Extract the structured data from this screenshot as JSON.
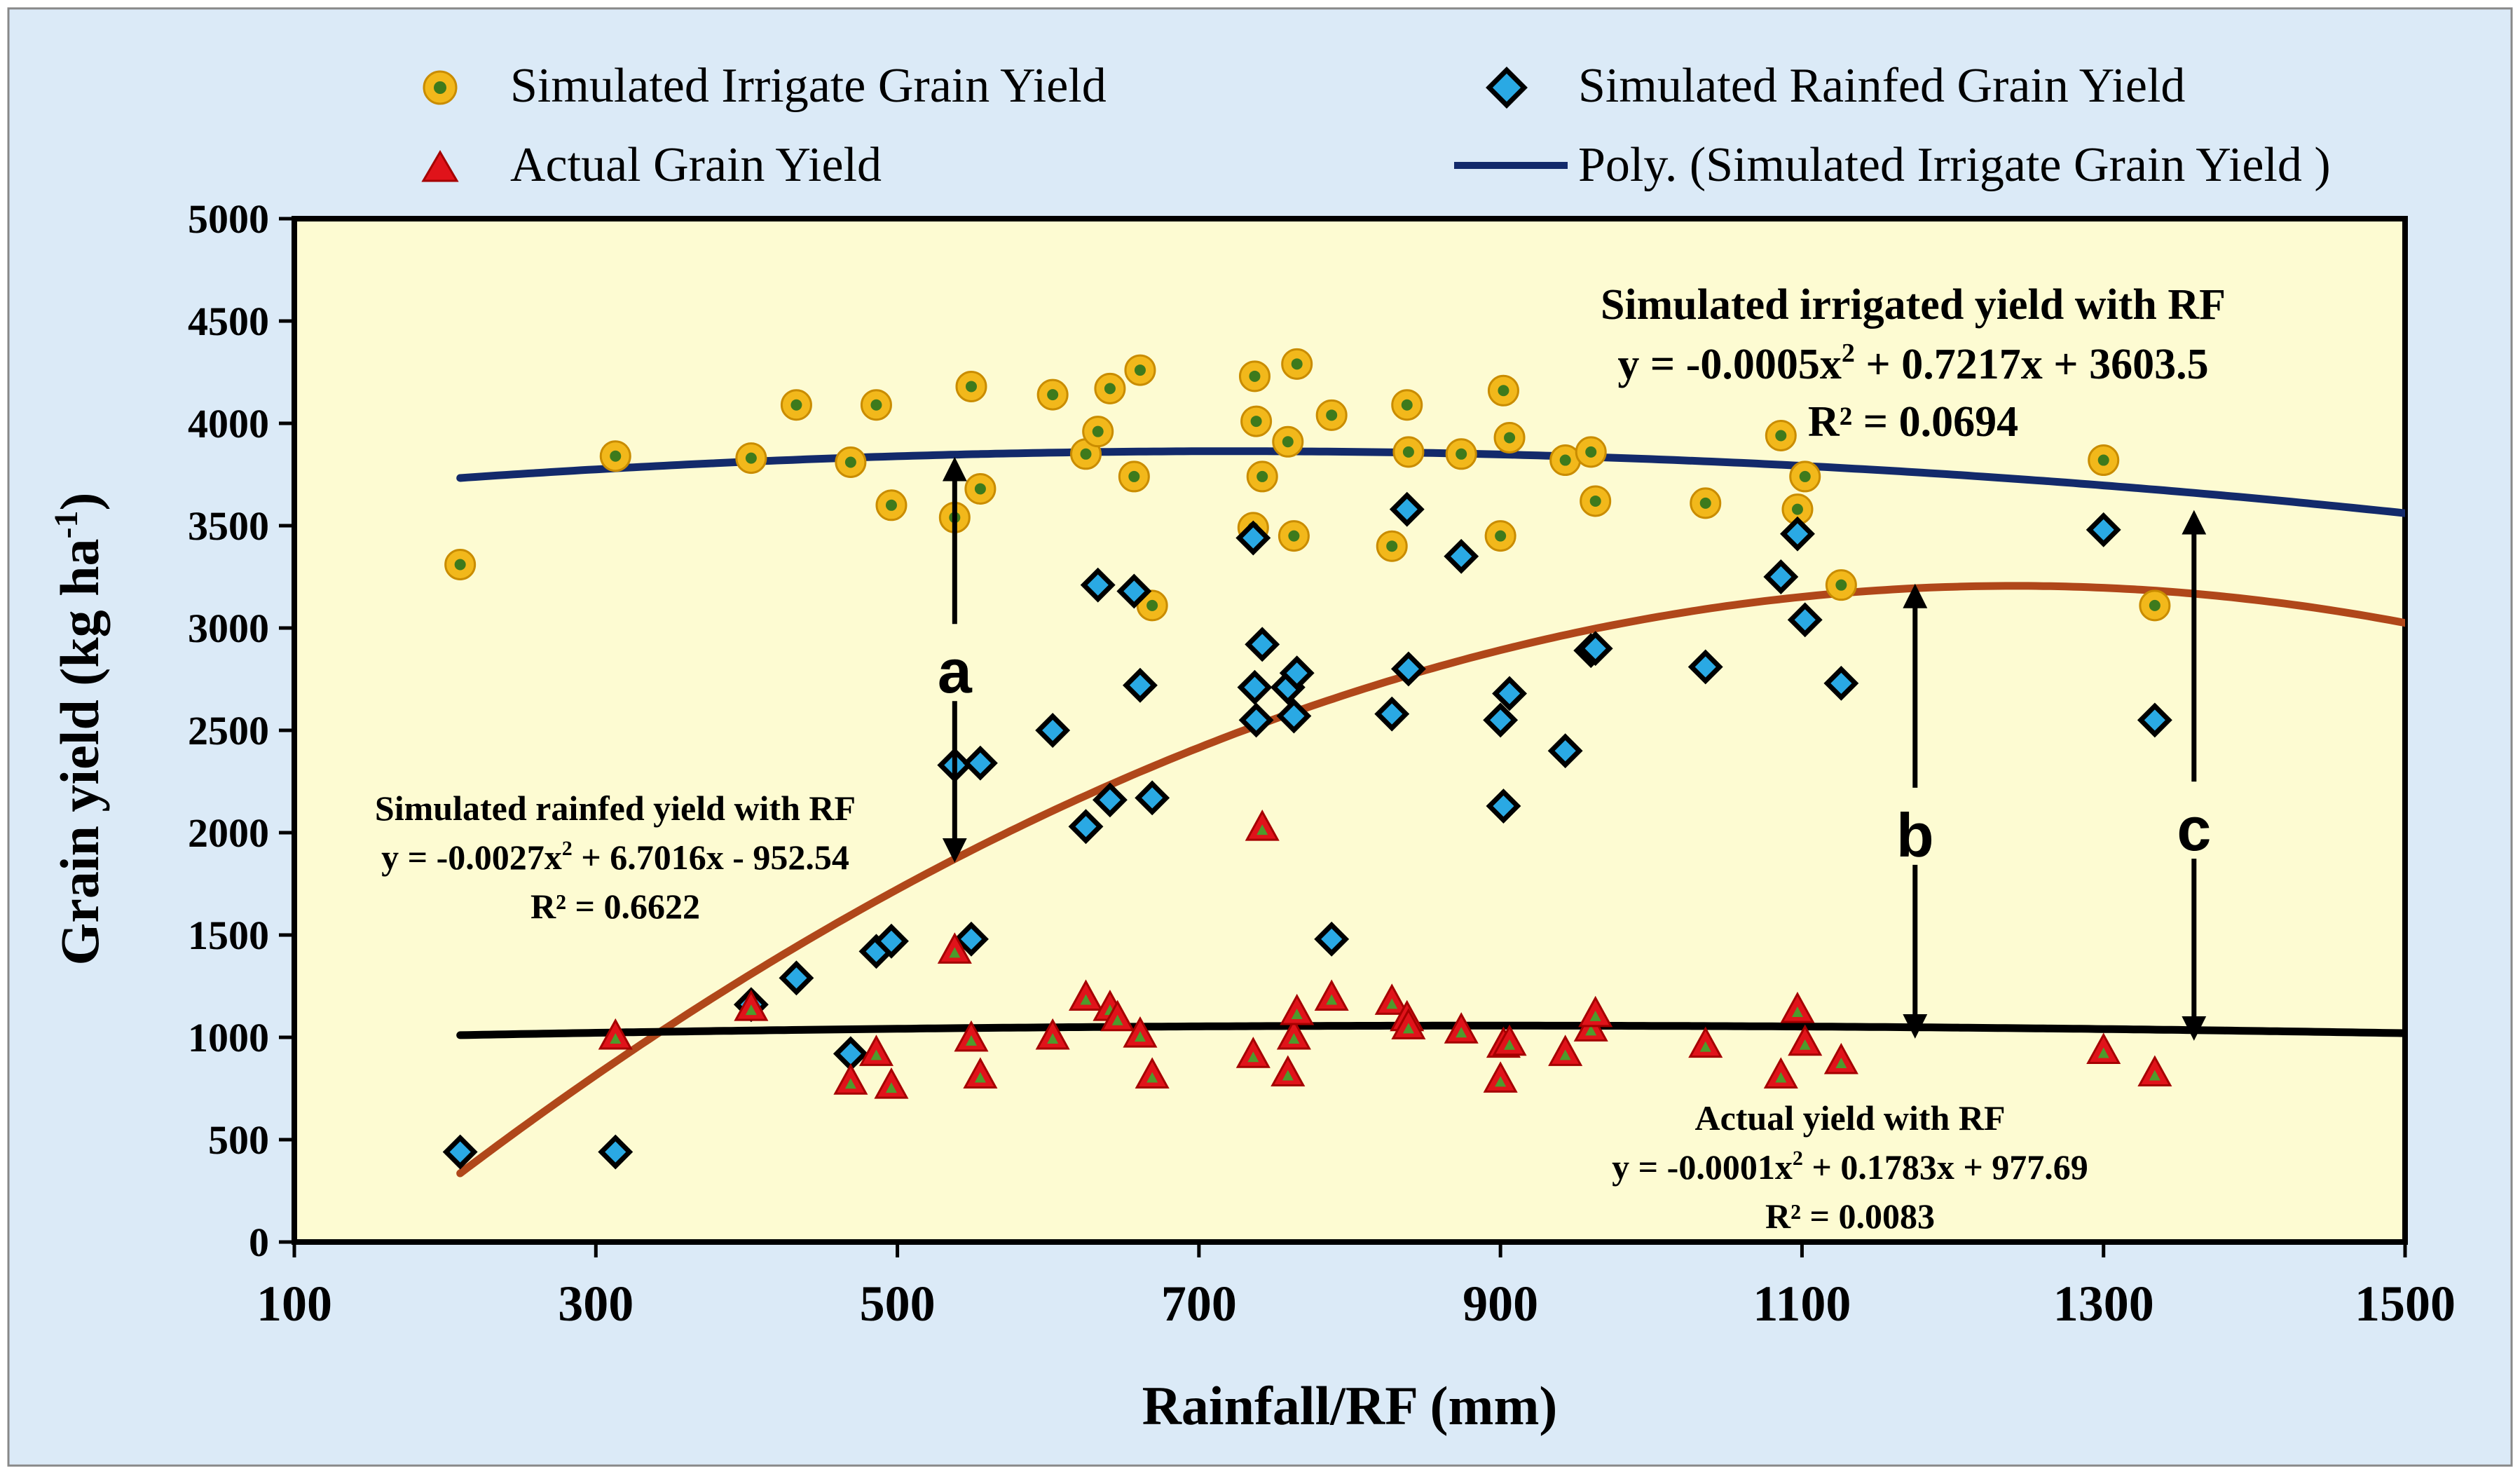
{
  "chart_data": {
    "type": "scatter",
    "xlabel": "Rainfall/RF (mm)",
    "ylabel": "Grain yield (kg ha",
    "ylabel_sup": "-1",
    "ylabel_end": ")",
    "xlim": [
      100,
      1500
    ],
    "ylim": [
      0,
      5000
    ],
    "xticks": [
      100,
      300,
      500,
      700,
      900,
      1100,
      1300,
      1500
    ],
    "yticks": [
      0,
      500,
      1000,
      1500,
      2000,
      2500,
      3000,
      3500,
      4000,
      4500,
      5000
    ],
    "colors": {
      "page_bg": "#dbeaf7",
      "plot_bg": "#fdfbd2",
      "irrigated_fill": "#f2b81b",
      "irrigated_center": "#3e7a1c",
      "rainfed_fill": "#2aa9e4",
      "actual_fill": "#e0131a",
      "actual_center": "#4e9a2c",
      "irrigated_trend": "#132a6b",
      "rainfed_trend": "#b0471a",
      "actual_trend": "#000000",
      "arrow": "#000000"
    },
    "legend": [
      {
        "label": "Simulated Irrigate Grain Yield",
        "marker": "circle"
      },
      {
        "label": "Simulated Rainfed Grain Yield",
        "marker": "diamond"
      },
      {
        "label": "Actual Grain Yield",
        "marker": "triangle"
      },
      {
        "label": "Poly. (Simulated Irrigate Grain Yield )",
        "marker": "line"
      }
    ],
    "series": [
      {
        "name": "Simulated Irrigate Grain Yield",
        "points": [
          [
            210,
            3310
          ],
          [
            313,
            3840
          ],
          [
            403,
            3830
          ],
          [
            433,
            4090
          ],
          [
            469,
            3810
          ],
          [
            486,
            4090
          ],
          [
            496,
            3600
          ],
          [
            538,
            3540
          ],
          [
            549,
            4180
          ],
          [
            555,
            3680
          ],
          [
            603,
            4140
          ],
          [
            625,
            3850
          ],
          [
            633,
            3960
          ],
          [
            641,
            4170
          ],
          [
            657,
            3740
          ],
          [
            661,
            4260
          ],
          [
            669,
            3110
          ],
          [
            736,
            3490
          ],
          [
            737,
            4230
          ],
          [
            738,
            4010
          ],
          [
            742,
            3740
          ],
          [
            759,
            3910
          ],
          [
            763,
            3450
          ],
          [
            765,
            4290
          ],
          [
            788,
            4040
          ],
          [
            828,
            3400
          ],
          [
            838,
            4090
          ],
          [
            839,
            3860
          ],
          [
            874,
            3850
          ],
          [
            900,
            3450
          ],
          [
            902,
            4160
          ],
          [
            906,
            3930
          ],
          [
            943,
            3820
          ],
          [
            960,
            3860
          ],
          [
            963,
            3620
          ],
          [
            1036,
            3610
          ],
          [
            1086,
            3940
          ],
          [
            1097,
            3580
          ],
          [
            1102,
            3740
          ],
          [
            1126,
            3210
          ],
          [
            1300,
            3820
          ],
          [
            1334,
            3110
          ]
        ]
      },
      {
        "name": "Simulated Rainfed Grain Yield",
        "points": [
          [
            210,
            440
          ],
          [
            313,
            440
          ],
          [
            403,
            1160
          ],
          [
            433,
            1290
          ],
          [
            469,
            920
          ],
          [
            486,
            1420
          ],
          [
            496,
            1470
          ],
          [
            538,
            2330
          ],
          [
            549,
            1480
          ],
          [
            555,
            2340
          ],
          [
            603,
            2500
          ],
          [
            625,
            2030
          ],
          [
            633,
            3210
          ],
          [
            641,
            2160
          ],
          [
            657,
            3180
          ],
          [
            661,
            2720
          ],
          [
            669,
            2170
          ],
          [
            736,
            3440
          ],
          [
            737,
            2710
          ],
          [
            738,
            2550
          ],
          [
            742,
            2920
          ],
          [
            759,
            2710
          ],
          [
            763,
            2570
          ],
          [
            765,
            2780
          ],
          [
            788,
            1480
          ],
          [
            828,
            2580
          ],
          [
            838,
            3580
          ],
          [
            839,
            2800
          ],
          [
            874,
            3350
          ],
          [
            900,
            2550
          ],
          [
            902,
            2130
          ],
          [
            906,
            2680
          ],
          [
            943,
            2400
          ],
          [
            960,
            2890
          ],
          [
            963,
            2900
          ],
          [
            1036,
            2810
          ],
          [
            1086,
            3250
          ],
          [
            1097,
            3460
          ],
          [
            1102,
            3040
          ],
          [
            1126,
            2730
          ],
          [
            1300,
            3480
          ],
          [
            1334,
            2550
          ]
        ]
      },
      {
        "name": "Actual Grain Yield",
        "points": [
          [
            313,
            1000
          ],
          [
            403,
            1140
          ],
          [
            469,
            780
          ],
          [
            486,
            920
          ],
          [
            496,
            760
          ],
          [
            538,
            1420
          ],
          [
            549,
            990
          ],
          [
            555,
            810
          ],
          [
            603,
            1000
          ],
          [
            625,
            1190
          ],
          [
            641,
            1140
          ],
          [
            646,
            1090
          ],
          [
            661,
            1010
          ],
          [
            669,
            810
          ],
          [
            736,
            910
          ],
          [
            742,
            2020
          ],
          [
            759,
            820
          ],
          [
            763,
            1000
          ],
          [
            765,
            1120
          ],
          [
            788,
            1190
          ],
          [
            828,
            1170
          ],
          [
            838,
            1090
          ],
          [
            839,
            1050
          ],
          [
            874,
            1030
          ],
          [
            900,
            790
          ],
          [
            902,
            960
          ],
          [
            906,
            970
          ],
          [
            943,
            920
          ],
          [
            960,
            1040
          ],
          [
            963,
            1110
          ],
          [
            1036,
            960
          ],
          [
            1086,
            810
          ],
          [
            1097,
            1130
          ],
          [
            1102,
            970
          ],
          [
            1126,
            880
          ],
          [
            1300,
            930
          ],
          [
            1334,
            820
          ]
        ]
      }
    ],
    "trendlines": [
      {
        "name": "Poly. (Simulated Irrigate Grain Yield )",
        "coef": [
          -0.0005,
          0.7217,
          3603.5
        ],
        "x_range": [
          210,
          1500
        ]
      },
      {
        "name": "Simulated rainfed yield with RF",
        "coef": [
          -0.0027,
          6.7016,
          -952.54
        ],
        "x_range": [
          210,
          1500
        ]
      },
      {
        "name": "Actual yield with RF",
        "coef": [
          -0.0001,
          0.1783,
          977.69
        ],
        "x_range": [
          210,
          1500
        ]
      }
    ],
    "annotations": {
      "irrigated": {
        "title": "Simulated irrigated yield with RF",
        "eq_pre": "y = -0.0005x",
        "eq_post": " + 0.7217x + 3603.5",
        "r2": "R² = 0.0694"
      },
      "rainfed": {
        "title": "Simulated rainfed yield with RF",
        "eq_pre": "y = -0.0027x",
        "eq_post": " + 6.7016x - 952.54",
        "r2": "R² = 0.6622"
      },
      "actual": {
        "title": "Actual yield with RF",
        "eq_pre": "y = -0.0001x",
        "eq_post": " + 0.1783x + 977.69",
        "r2": "R² = 0.0083"
      },
      "sq": "2"
    },
    "gap_arrows": [
      {
        "label": "a",
        "x": 538,
        "y_top": 3840,
        "y_bottom": 1850,
        "label_y": 2780
      },
      {
        "label": "b",
        "x": 1175,
        "y_top": 3220,
        "y_bottom": 990,
        "label_y": 1980
      },
      {
        "label": "c",
        "x": 1360,
        "y_top": 3580,
        "y_bottom": 980,
        "label_y": 2010
      }
    ]
  }
}
